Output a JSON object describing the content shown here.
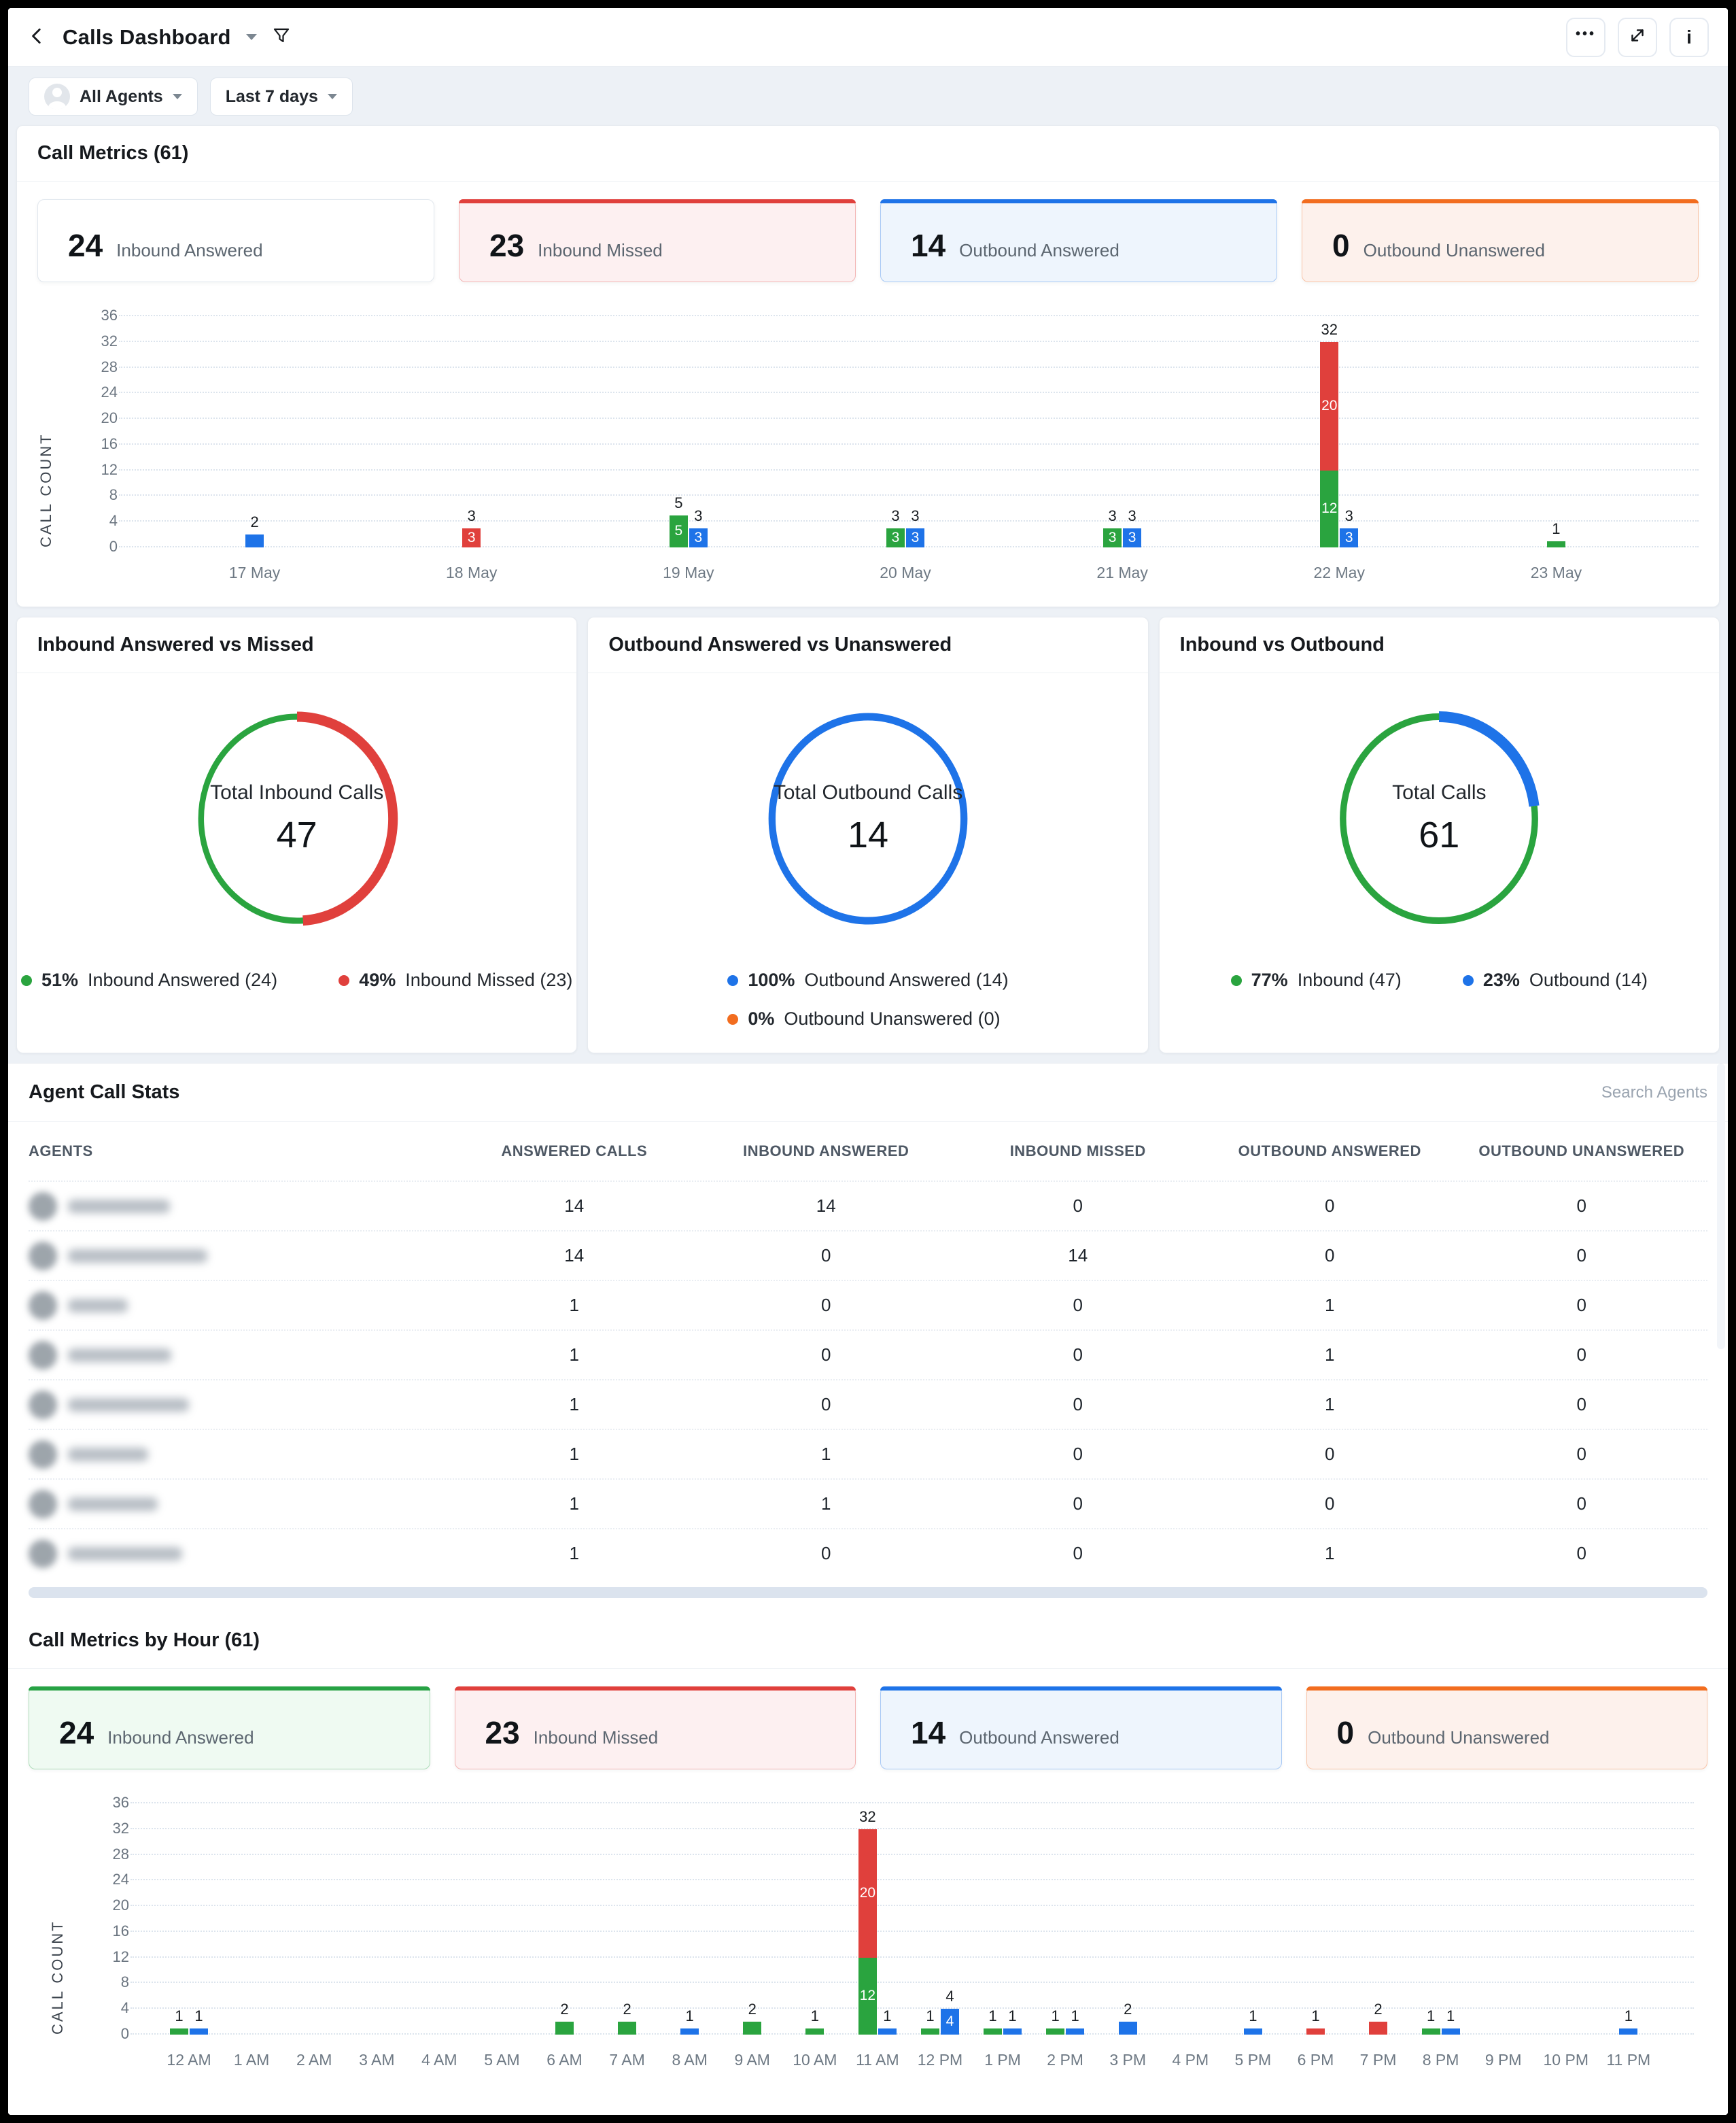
{
  "header": {
    "title": "Calls Dashboard"
  },
  "filters": {
    "agents": "All Agents",
    "range": "Last 7 days"
  },
  "call_metrics": {
    "title": "Call Metrics (61)",
    "stats": [
      {
        "value": "24",
        "label": "Inbound Answered",
        "accent": null,
        "tint": null
      },
      {
        "value": "23",
        "label": "Inbound Missed",
        "accent": "#e0403c",
        "tint": "#fdf0f1"
      },
      {
        "value": "14",
        "label": "Outbound Answered",
        "accent": "#1e73e8",
        "tint": "#eef5fd"
      },
      {
        "value": "0",
        "label": "Outbound Unanswered",
        "accent": "#f26d1f",
        "tint": "#fdf1ec"
      }
    ]
  },
  "hour_metrics": {
    "title": "Call Metrics by Hour (61)",
    "stats": [
      {
        "value": "24",
        "label": "Inbound Answered",
        "accent": "#27a244",
        "tint": "#effaf2"
      },
      {
        "value": "23",
        "label": "Inbound Missed",
        "accent": "#e0403c",
        "tint": "#fdf0f1"
      },
      {
        "value": "14",
        "label": "Outbound Answered",
        "accent": "#1e73e8",
        "tint": "#eef5fd"
      },
      {
        "value": "0",
        "label": "Outbound Unanswered",
        "accent": "#f26d1f",
        "tint": "#fdf1ec"
      }
    ]
  },
  "agent_stats": {
    "title": "Agent Call Stats",
    "search_placeholder": "Search Agents",
    "columns": [
      "AGENTS",
      "ANSWERED CALLS",
      "INBOUND ANSWERED",
      "INBOUND MISSED",
      "OUTBOUND ANSWERED",
      "OUTBOUND UNANSWERED"
    ],
    "agent_names_redacted": true,
    "rows": [
      [
        14,
        14,
        0,
        0,
        0
      ],
      [
        14,
        0,
        14,
        0,
        0
      ],
      [
        1,
        0,
        0,
        1,
        0
      ],
      [
        1,
        0,
        0,
        1,
        0
      ],
      [
        1,
        0,
        0,
        1,
        0
      ],
      [
        1,
        1,
        0,
        0,
        0
      ],
      [
        1,
        1,
        0,
        0,
        0
      ],
      [
        1,
        0,
        0,
        1,
        0
      ]
    ]
  },
  "chart_data": [
    {
      "type": "bar",
      "title": "Call Metrics (61)",
      "xlabel": "",
      "ylabel": "CALL COUNT",
      "ylim": [
        0,
        36
      ],
      "ytick_step": 4,
      "grid": true,
      "categories": [
        "17 May",
        "18 May",
        "19 May",
        "20 May",
        "21 May",
        "22 May",
        "23 May"
      ],
      "series": [
        {
          "name": "Inbound Answered",
          "color": "#2aa43f",
          "stack": "inbound",
          "values": [
            0,
            0,
            5,
            3,
            3,
            12,
            1
          ]
        },
        {
          "name": "Inbound Missed",
          "color": "#e0403c",
          "stack": "inbound",
          "values": [
            0,
            3,
            0,
            0,
            0,
            20,
            0
          ]
        },
        {
          "name": "Outbound Answered",
          "color": "#1e73e8",
          "stack": "outbound",
          "values": [
            2,
            0,
            3,
            3,
            3,
            3,
            0
          ]
        }
      ]
    },
    {
      "type": "pie",
      "title": "Inbound Answered vs Missed",
      "center_label": "Total Inbound Calls",
      "center_value": "47",
      "slices": [
        {
          "label": "Inbound Missed",
          "pct": 49,
          "count": 23,
          "color": "#e0403c",
          "stroke": 15
        },
        {
          "label": "Inbound Answered",
          "pct": 51,
          "count": 24,
          "color": "#2aa43f",
          "stroke": 9
        }
      ],
      "legend_order": [
        1,
        0
      ],
      "legend_layout": "row"
    },
    {
      "type": "pie",
      "title": "Outbound Answered vs Unanswered",
      "center_label": "Total Outbound Calls",
      "center_value": "14",
      "slices": [
        {
          "label": "Outbound Answered",
          "pct": 100,
          "count": 14,
          "color": "#1e73e8",
          "stroke": 11
        },
        {
          "label": "Outbound Unanswered",
          "pct": 0,
          "count": 0,
          "color": "#f26d1f",
          "stroke": 11
        }
      ],
      "legend_order": [
        0,
        1
      ],
      "legend_layout": "column"
    },
    {
      "type": "pie",
      "title": "Inbound vs Outbound",
      "center_label": "Total Calls",
      "center_value": "61",
      "slices": [
        {
          "label": "Outbound",
          "pct": 23,
          "count": 14,
          "color": "#1e73e8",
          "stroke": 16
        },
        {
          "label": "Inbound",
          "pct": 77,
          "count": 47,
          "color": "#2aa43f",
          "stroke": 10
        }
      ],
      "legend_order": [
        1,
        0
      ],
      "legend_layout": "row"
    },
    {
      "type": "bar",
      "title": "Call Metrics by Hour (61)",
      "xlabel": "",
      "ylabel": "CALL COUNT",
      "ylim": [
        0,
        36
      ],
      "ytick_step": 4,
      "grid": true,
      "categories": [
        "12 AM",
        "1 AM",
        "2 AM",
        "3 AM",
        "4 AM",
        "5 AM",
        "6 AM",
        "7 AM",
        "8 AM",
        "9 AM",
        "10 AM",
        "11 AM",
        "12 PM",
        "1 PM",
        "2 PM",
        "3 PM",
        "4 PM",
        "5 PM",
        "6 PM",
        "7 PM",
        "8 PM",
        "9 PM",
        "10 PM",
        "11 PM"
      ],
      "series": [
        {
          "name": "Inbound Answered",
          "color": "#2aa43f",
          "stack": "inbound",
          "values": [
            1,
            0,
            0,
            0,
            0,
            0,
            2,
            2,
            0,
            2,
            1,
            12,
            1,
            1,
            1,
            0,
            0,
            0,
            0,
            0,
            1,
            0,
            0,
            0
          ]
        },
        {
          "name": "Inbound Missed",
          "color": "#e0403c",
          "stack": "inbound",
          "values": [
            0,
            0,
            0,
            0,
            0,
            0,
            0,
            0,
            0,
            0,
            0,
            20,
            0,
            0,
            0,
            0,
            0,
            0,
            1,
            2,
            0,
            0,
            0,
            0
          ]
        },
        {
          "name": "Outbound Answered",
          "color": "#1e73e8",
          "stack": "outbound",
          "values": [
            1,
            0,
            0,
            0,
            0,
            0,
            0,
            0,
            1,
            0,
            0,
            1,
            4,
            1,
            1,
            2,
            0,
            1,
            0,
            0,
            1,
            0,
            0,
            1
          ]
        }
      ]
    }
  ]
}
